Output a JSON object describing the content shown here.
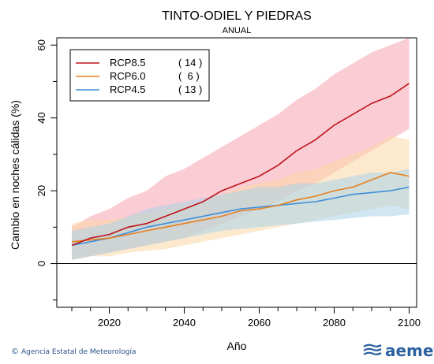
{
  "chart_data": {
    "type": "line",
    "title": "TINTO-ODIEL Y PIEDRAS",
    "subtitle": "ANUAL",
    "xlabel": "Año",
    "ylabel": "Cambio en noches cálidas (%)",
    "xlim": [
      2006,
      2102
    ],
    "ylim": [
      -12,
      62
    ],
    "xticks": [
      2020,
      2040,
      2060,
      2080,
      2100
    ],
    "yticks": [
      0,
      20,
      40,
      60
    ],
    "reference_line": 0,
    "legend_position": "top-left",
    "series": [
      {
        "name": "RCP8.5",
        "count": "( 14 )",
        "color": "#c0141b",
        "band_color": "#f5a3ae",
        "x": [
          2010,
          2015,
          2020,
          2025,
          2030,
          2035,
          2040,
          2045,
          2050,
          2055,
          2060,
          2065,
          2070,
          2075,
          2080,
          2085,
          2090,
          2095,
          2100
        ],
        "values": [
          5,
          7,
          8,
          10,
          11,
          13,
          15,
          17,
          20,
          22,
          24,
          27,
          31,
          34,
          38,
          41,
          44,
          46,
          49.5
        ],
        "upper": [
          10,
          13,
          15,
          18,
          20,
          24,
          26,
          29,
          32,
          35,
          38,
          41,
          45,
          48,
          52,
          55,
          58,
          60,
          62
        ],
        "lower": [
          1,
          2,
          3,
          4,
          5,
          6,
          7,
          9,
          11,
          13,
          15,
          17,
          20,
          22,
          25,
          28,
          31,
          34,
          37
        ]
      },
      {
        "name": "RCP6.0",
        "count": "(  6 )",
        "color": "#e8801e",
        "band_color": "#fbd7a6",
        "x": [
          2010,
          2015,
          2020,
          2025,
          2030,
          2035,
          2040,
          2045,
          2050,
          2055,
          2060,
          2065,
          2070,
          2075,
          2080,
          2085,
          2090,
          2095,
          2100
        ],
        "values": [
          6,
          6.5,
          7,
          8,
          9,
          10,
          11,
          12,
          13,
          14.5,
          15,
          16,
          17.5,
          18.5,
          20,
          21,
          23,
          25,
          24
        ],
        "upper": [
          11,
          12,
          12,
          13,
          14,
          15,
          16,
          17,
          19,
          21,
          22,
          23,
          25,
          26,
          28,
          30,
          32,
          35,
          34
        ],
        "lower": [
          1,
          2,
          2,
          3,
          3.5,
          4,
          5,
          6,
          7,
          8,
          9,
          10,
          11,
          12,
          13,
          14,
          15,
          16,
          15
        ]
      },
      {
        "name": "RCP4.5",
        "count": "( 13 )",
        "color": "#3f8fd9",
        "band_color": "#a9d4ea",
        "x": [
          2010,
          2015,
          2020,
          2025,
          2030,
          2035,
          2040,
          2045,
          2050,
          2055,
          2060,
          2065,
          2070,
          2075,
          2080,
          2085,
          2090,
          2095,
          2100
        ],
        "values": [
          5,
          6,
          7,
          8.5,
          10,
          11,
          12,
          13,
          14,
          15,
          15.5,
          16,
          16.5,
          17,
          18,
          19,
          19.5,
          20,
          21
        ],
        "upper": [
          9,
          10,
          11,
          13,
          15,
          16,
          17,
          18,
          19,
          20,
          21,
          21,
          22,
          22,
          23,
          24,
          25,
          25,
          26
        ],
        "lower": [
          1,
          2,
          3,
          4,
          5,
          6,
          7,
          8,
          9,
          9.5,
          10,
          10.5,
          11,
          11.5,
          12,
          12.5,
          13,
          13,
          13.5
        ]
      }
    ]
  },
  "footer": {
    "copyright_symbol": "©",
    "agency": "Agencia Estatal de Meteorología",
    "logo_text": "aemet",
    "logo_icon": "aemet-logo-icon"
  }
}
